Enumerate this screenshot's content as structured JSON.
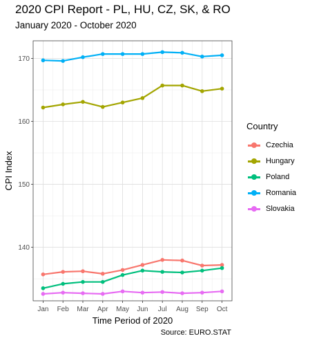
{
  "title": "2020 CPI Report - PL, HU, CZ, SK, & RO",
  "subtitle": "January 2020 - October 2020",
  "caption": "Source: EURO.STAT",
  "chart_data": {
    "type": "line",
    "title": "2020 CPI Report - PL, HU, CZ, SK, & RO",
    "subtitle": "January 2020 - October 2020",
    "xlabel": "Time Period of 2020",
    "ylabel": "CPI Index",
    "categories": [
      "Jan",
      "Feb",
      "Mar",
      "Apr",
      "May",
      "Jun",
      "Jul",
      "Aug",
      "Sep",
      "Oct"
    ],
    "ylim": [
      131.5,
      172.8
    ],
    "yticks": [
      140,
      150,
      160,
      170
    ],
    "grid": true,
    "legend_title": "Country",
    "legend_position": "right",
    "series": [
      {
        "name": "Czechia",
        "color": "#F8766D",
        "values": [
          135.7,
          136.1,
          136.2,
          135.8,
          136.4,
          137.2,
          138.0,
          137.9,
          137.1,
          137.2
        ]
      },
      {
        "name": "Hungary",
        "color": "#A3A500",
        "values": [
          162.2,
          162.7,
          163.1,
          162.3,
          163.0,
          163.7,
          165.7,
          165.7,
          164.8,
          165.2
        ]
      },
      {
        "name": "Poland",
        "color": "#00BF7D",
        "values": [
          133.5,
          134.2,
          134.5,
          134.5,
          135.6,
          136.3,
          136.1,
          136.0,
          136.3,
          136.7
        ]
      },
      {
        "name": "Romania",
        "color": "#00B0F6",
        "values": [
          169.7,
          169.6,
          170.2,
          170.7,
          170.7,
          170.7,
          171.0,
          170.9,
          170.3,
          170.5
        ]
      },
      {
        "name": "Slovakia",
        "color": "#E76BF3",
        "values": [
          132.6,
          132.8,
          132.7,
          132.6,
          133.0,
          132.8,
          132.9,
          132.7,
          132.8,
          133.0
        ]
      }
    ]
  }
}
